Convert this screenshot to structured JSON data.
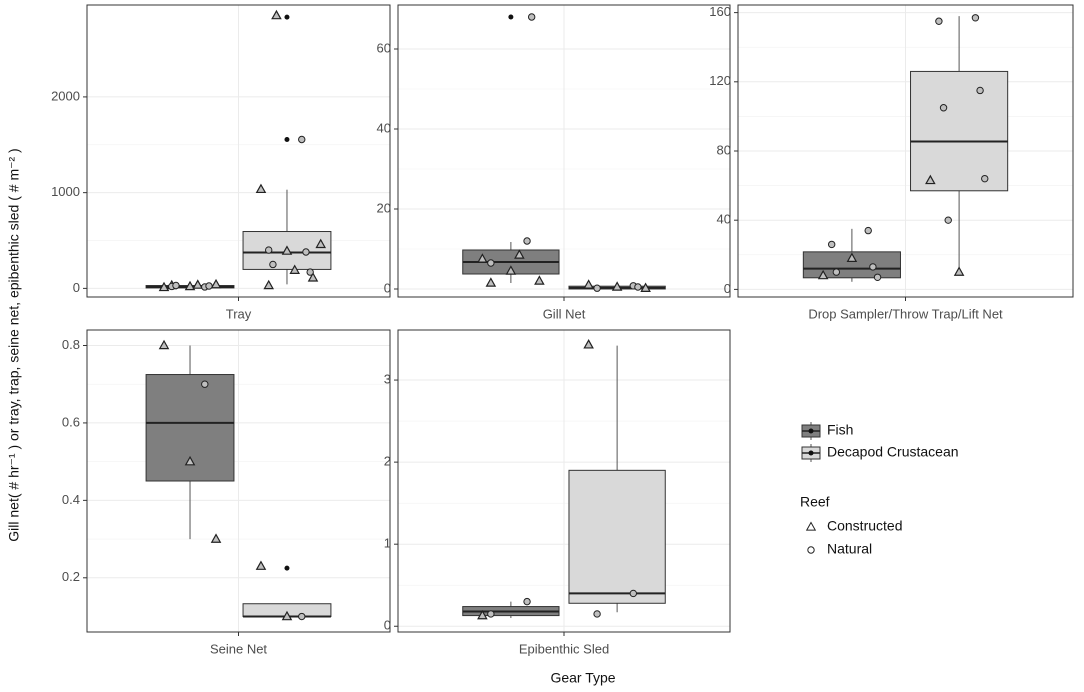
{
  "chart_data": {
    "type": "box",
    "y_label": "Gill net( # hr⁻¹ ) or tray, trap, seine net, epibenthic sled ( # m⁻² )",
    "x_label": "Gear Type",
    "series": [
      {
        "name": "Fish",
        "color": "#7f7f7f"
      },
      {
        "name": "Decapod Crustacean",
        "color": "#d9d9d9"
      }
    ],
    "shape_legend": {
      "title": "Reef",
      "items": [
        "Constructed",
        "Natural"
      ]
    },
    "grid": true,
    "panels": [
      {
        "category": "Tray",
        "ylim": [
          -90,
          2960
        ],
        "yticks": [
          0,
          1000,
          2000
        ],
        "boxes": [
          {
            "whisker_low": 0,
            "q1": 5,
            "median": 15,
            "q3": 30,
            "whisker_high": 50,
            "outliers": [],
            "constructed": [
              10,
              20,
              40,
              30,
              35
            ],
            "natural": [
              15,
              20,
              25,
              30
            ]
          },
          {
            "whisker_low": 42,
            "q1": 198,
            "median": 375,
            "q3": 594,
            "whisker_high": 1031,
            "outliers": [
              2833,
              1555
            ],
            "constructed": [
              1035,
              390,
              110,
              30,
              190,
              460,
              2850
            ],
            "natural": [
              1555,
              400,
              380,
              250,
              170
            ]
          }
        ]
      },
      {
        "category": "Gill Net",
        "ylim": [
          -2,
          71
        ],
        "yticks": [
          0,
          20,
          40,
          60
        ],
        "boxes": [
          {
            "whisker_low": 1.5,
            "q1": 3.75,
            "median": 6.75,
            "q3": 9.75,
            "whisker_high": 11.75,
            "outliers": [
              68
            ],
            "constructed": [
              7.5,
              4.5,
              2,
              1.5,
              8.5
            ],
            "natural": [
              12,
              6.5,
              68
            ]
          },
          {
            "whisker_low": 0,
            "q1": 0,
            "median": 0.3,
            "q3": 0.7,
            "whisker_high": 1,
            "outliers": [],
            "constructed": [
              1,
              0.5,
              0.2
            ],
            "natural": [
              0.8,
              0.2,
              0.5
            ]
          }
        ]
      },
      {
        "category": "Drop Sampler/Throw Trap/Lift Net",
        "ylim": [
          -4.4,
          164.4
        ],
        "yticks": [
          0,
          40,
          80,
          120,
          160
        ],
        "boxes": [
          {
            "whisker_low": 4.4,
            "q1": 6.7,
            "median": 12,
            "q3": 21.7,
            "whisker_high": 35,
            "outliers": [],
            "constructed": [
              8,
              18
            ],
            "natural": [
              34,
              26,
              13,
              10,
              7
            ]
          },
          {
            "whisker_low": 10,
            "q1": 57,
            "median": 85.5,
            "q3": 126,
            "whisker_high": 158,
            "outliers": [],
            "constructed": [
              63,
              10
            ],
            "natural": [
              157,
              155,
              115,
              105,
              64,
              40
            ]
          }
        ]
      },
      {
        "category": "Seine Net",
        "ylim": [
          0.06,
          0.84
        ],
        "yticks": [
          0.2,
          0.4,
          0.6,
          0.8
        ],
        "boxes": [
          {
            "whisker_low": 0.3,
            "q1": 0.45,
            "median": 0.6,
            "q3": 0.725,
            "whisker_high": 0.8,
            "outliers": [],
            "constructed": [
              0.8,
              0.5,
              0.3
            ],
            "natural": [
              0.7
            ]
          },
          {
            "whisker_low": 0.1,
            "q1": 0.1,
            "median": 0.1,
            "q3": 0.133,
            "whisker_high": 0.133,
            "outliers": [
              0.225
            ],
            "constructed": [
              0.23,
              0.1
            ],
            "natural": [
              0.1
            ]
          }
        ]
      },
      {
        "category": "Epibenthic Sled",
        "ylim": [
          -0.07,
          3.61
        ],
        "yticks": [
          0,
          1,
          2,
          3
        ],
        "boxes": [
          {
            "whisker_low": 0.1,
            "q1": 0.13,
            "median": 0.18,
            "q3": 0.24,
            "whisker_high": 0.3,
            "outliers": [],
            "constructed": [
              0.13
            ],
            "natural": [
              0.3,
              0.15
            ]
          },
          {
            "whisker_low": 0.17,
            "q1": 0.28,
            "median": 0.4,
            "q3": 1.9,
            "whisker_high": 3.42,
            "outliers": [],
            "constructed": [
              3.43
            ],
            "natural": [
              0.4,
              0.15
            ]
          }
        ]
      }
    ]
  }
}
